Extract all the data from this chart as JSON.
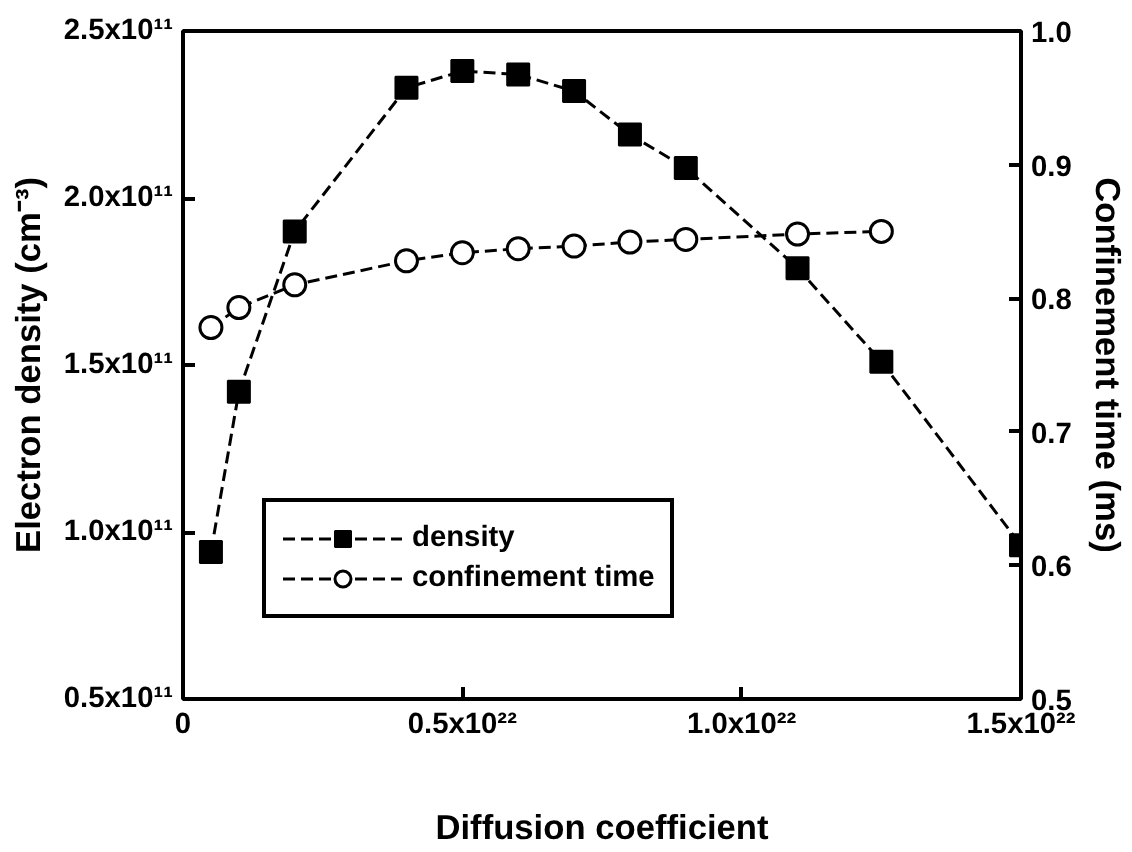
{
  "chart_data": {
    "type": "line",
    "xlabel": "Diffusion coefficient",
    "ylabel": "Electron density (cm⁻³)",
    "y2label": "Confinement time (ms)",
    "xlim": [
      0,
      1.5e+22
    ],
    "xticks": [
      {
        "value": 0,
        "label": "0"
      },
      {
        "value": 5e+21,
        "label": "0.5x10²²"
      },
      {
        "value": 1e+22,
        "label": "1.0x10²²"
      },
      {
        "value": 1.5e+22,
        "label": "1.5x10²²"
      }
    ],
    "ylim": [
      50000000000.0,
      250000000000.0
    ],
    "yticks": [
      {
        "value": 50000000000.0,
        "label": "0.5x10¹¹"
      },
      {
        "value": 100000000000.0,
        "label": "1.0x10¹¹"
      },
      {
        "value": 150000000000.0,
        "label": "1.5x10¹¹"
      },
      {
        "value": 200000000000.0,
        "label": "2.0x10¹¹"
      },
      {
        "value": 250000000000.0,
        "label": "2.5x10¹¹"
      }
    ],
    "y2lim": [
      0.5,
      1.0
    ],
    "y2ticks": [
      {
        "value": 0.5,
        "label": "0.5"
      },
      {
        "value": 0.6,
        "label": "0.6"
      },
      {
        "value": 0.7,
        "label": "0.7"
      },
      {
        "value": 0.8,
        "label": "0.8"
      },
      {
        "value": 0.9,
        "label": "0.9"
      },
      {
        "value": 1.0,
        "label": "1.0"
      }
    ],
    "grid": false,
    "legend": "bottom left",
    "line_style": "dashed",
    "series": [
      {
        "name": "density",
        "color": "#000000",
        "marker": "square",
        "x": [
          5e+20,
          1e+21,
          2e+21,
          4e+21,
          5e+21,
          6e+21,
          7e+21,
          8e+21,
          9e+21,
          1.1e+22,
          1.25e+22,
          1.5e+22
        ],
        "values": [
          94000000000.0,
          142000000000.0,
          190000000000.0,
          233000000000.0,
          238000000000.0,
          237000000000.0,
          232000000000.0,
          219000000000.0,
          209000000000.0,
          179000000000.0,
          151000000000.0,
          96000000000.0
        ]
      },
      {
        "name": "confinement time",
        "color": "#000000",
        "marker": "circle",
        "axis": "y2",
        "x": [
          5e+20,
          1e+21,
          2e+21,
          4e+21,
          5e+21,
          6e+21,
          7e+21,
          8e+21,
          9e+21,
          1.1e+22,
          1.25e+22
        ],
        "values": [
          0.778,
          0.793,
          0.81,
          0.828,
          0.834,
          0.837,
          0.839,
          0.842,
          0.844,
          0.848,
          0.85
        ]
      }
    ]
  }
}
